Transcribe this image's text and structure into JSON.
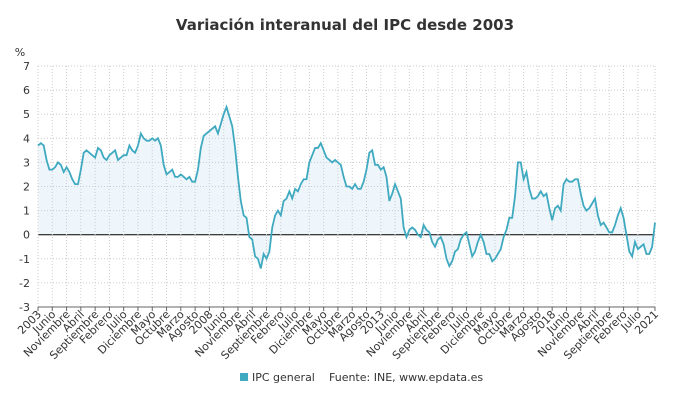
{
  "chart_data": {
    "type": "line",
    "title": "Variación interanual del IPC desde 2003",
    "y_label": "%",
    "source": "Fuente: INE, www.epdata.es",
    "categories": [
      "2003",
      null,
      null,
      null,
      null,
      "Junio",
      null,
      null,
      null,
      null,
      "Noviembre",
      null,
      null,
      null,
      null,
      "Abril",
      null,
      null,
      null,
      null,
      "Septiembre",
      null,
      null,
      null,
      null,
      "Febrero",
      null,
      null,
      null,
      null,
      "Julio",
      null,
      null,
      null,
      null,
      "Diciembre",
      null,
      null,
      null,
      null,
      "Mayo",
      null,
      null,
      null,
      null,
      "Octubre",
      null,
      null,
      null,
      null,
      "Marzo",
      null,
      null,
      null,
      null,
      "Agosto",
      null,
      null,
      null,
      null,
      "2008",
      null,
      null,
      null,
      null,
      "Junio",
      null,
      null,
      null,
      null,
      "Noviembre",
      null,
      null,
      null,
      null,
      "Abril",
      null,
      null,
      null,
      null,
      "Septiembre",
      null,
      null,
      null,
      null,
      "Febrero",
      null,
      null,
      null,
      null,
      "Julio",
      null,
      null,
      null,
      null,
      "Diciembre",
      null,
      null,
      null,
      null,
      "Mayo",
      null,
      null,
      null,
      null,
      "Octubre",
      null,
      null,
      null,
      null,
      "Marzo",
      null,
      null,
      null,
      null,
      "Agosto",
      null,
      null,
      null,
      null,
      "2013",
      null,
      null,
      null,
      null,
      "Junio",
      null,
      null,
      null,
      null,
      "Noviembre",
      null,
      null,
      null,
      null,
      "Abril",
      null,
      null,
      null,
      null,
      "Septiembre",
      null,
      null,
      null,
      null,
      "Febrero",
      null,
      null,
      null,
      null,
      "Julio",
      null,
      null,
      null,
      null,
      "Diciembre",
      null,
      null,
      null,
      null,
      "Mayo",
      null,
      null,
      null,
      null,
      "Octubre",
      null,
      null,
      null,
      null,
      "Marzo",
      null,
      null,
      null,
      null,
      "Agosto",
      null,
      null,
      null,
      null,
      "2018",
      null,
      null,
      null,
      null,
      "Junio",
      null,
      null,
      null,
      null,
      "Noviembre",
      null,
      null,
      null,
      null,
      "Abril",
      null,
      null,
      null,
      null,
      "Septiembre",
      null,
      null,
      null,
      null,
      "Febrero",
      null,
      null,
      null,
      null,
      "Julio",
      null,
      null,
      null,
      null,
      null,
      "2021"
    ],
    "series": [
      {
        "name": "IPC general",
        "color": "#3fa9c0",
        "fill": "#eef6fb",
        "values": [
          3.7,
          3.8,
          3.7,
          3.1,
          2.7,
          2.7,
          2.8,
          3.0,
          2.9,
          2.6,
          2.8,
          2.6,
          2.3,
          2.1,
          2.1,
          2.7,
          3.4,
          3.5,
          3.4,
          3.3,
          3.2,
          3.6,
          3.5,
          3.2,
          3.1,
          3.3,
          3.4,
          3.5,
          3.1,
          3.2,
          3.3,
          3.3,
          3.7,
          3.5,
          3.4,
          3.7,
          4.2,
          4.0,
          3.9,
          3.9,
          4.0,
          3.9,
          4.0,
          3.7,
          2.9,
          2.5,
          2.6,
          2.7,
          2.4,
          2.4,
          2.5,
          2.4,
          2.3,
          2.4,
          2.2,
          2.2,
          2.7,
          3.6,
          4.1,
          4.2,
          4.3,
          4.4,
          4.5,
          4.2,
          4.6,
          5.0,
          5.3,
          4.9,
          4.5,
          3.6,
          2.4,
          1.4,
          0.8,
          0.7,
          -0.1,
          -0.2,
          -0.9,
          -1.0,
          -1.4,
          -0.8,
          -1.0,
          -0.7,
          0.3,
          0.8,
          1.0,
          0.8,
          1.4,
          1.5,
          1.8,
          1.5,
          1.9,
          1.8,
          2.1,
          2.3,
          2.3,
          3.0,
          3.3,
          3.6,
          3.6,
          3.8,
          3.5,
          3.2,
          3.1,
          3.0,
          3.1,
          3.0,
          2.9,
          2.4,
          2.0,
          2.0,
          1.9,
          2.1,
          1.9,
          1.9,
          2.2,
          2.7,
          3.4,
          3.5,
          2.9,
          2.9,
          2.7,
          2.8,
          2.4,
          1.4,
          1.7,
          2.1,
          1.8,
          1.5,
          0.3,
          -0.1,
          0.2,
          0.3,
          0.2,
          0.0,
          -0.1,
          0.4,
          0.2,
          0.1,
          -0.3,
          -0.5,
          -0.2,
          -0.1,
          -0.4,
          -1.0,
          -1.3,
          -1.1,
          -0.7,
          -0.6,
          -0.2,
          0.0,
          0.1,
          -0.4,
          -0.9,
          -0.7,
          -0.3,
          0.0,
          -0.3,
          -0.8,
          -0.8,
          -1.1,
          -1.0,
          -0.8,
          -0.6,
          -0.1,
          0.2,
          0.7,
          0.7,
          1.6,
          3.0,
          3.0,
          2.3,
          2.6,
          1.9,
          1.5,
          1.5,
          1.6,
          1.8,
          1.6,
          1.7,
          1.1,
          0.6,
          1.1,
          1.2,
          1.0,
          2.1,
          2.3,
          2.2,
          2.2,
          2.3,
          2.3,
          1.7,
          1.2,
          1.0,
          1.1,
          1.3,
          1.5,
          0.8,
          0.4,
          0.5,
          0.3,
          0.1,
          0.1,
          0.4,
          0.8,
          1.1,
          0.7,
          0.0,
          -0.7,
          -0.9,
          -0.3,
          -0.6,
          -0.5,
          -0.4,
          -0.8,
          -0.8,
          -0.5,
          0.5
        ]
      }
    ],
    "ylim": [
      -3,
      7
    ],
    "yticks": [
      -3,
      -2,
      -1,
      0,
      1,
      2,
      3,
      4,
      5,
      6,
      7
    ],
    "grid": true
  }
}
